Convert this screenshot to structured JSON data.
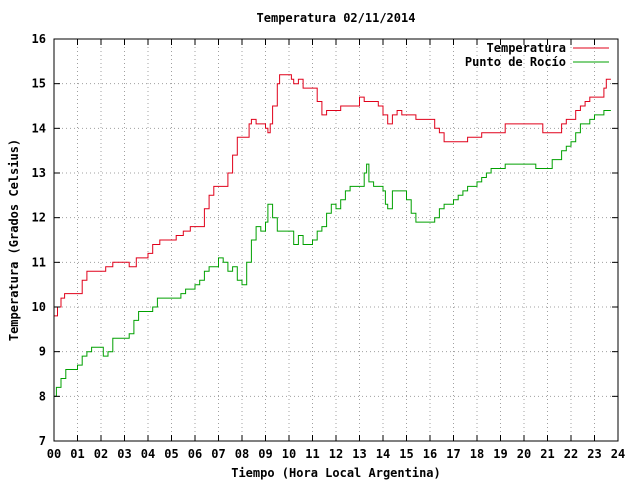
{
  "chart_data": {
    "type": "line",
    "title": "Temperatura 02/11/2014",
    "xlabel": "Tiempo (Hora Local Argentina)",
    "ylabel": "Temperatura (Grados Celsius)",
    "xlim": [
      0,
      24
    ],
    "ylim": [
      7,
      16
    ],
    "x_ticks": [
      "00",
      "01",
      "02",
      "03",
      "04",
      "05",
      "06",
      "07",
      "08",
      "09",
      "10",
      "11",
      "12",
      "13",
      "14",
      "15",
      "16",
      "17",
      "18",
      "19",
      "20",
      "21",
      "22",
      "23",
      "24"
    ],
    "y_ticks": [
      "7",
      "8",
      "9",
      "10",
      "11",
      "12",
      "13",
      "14",
      "15",
      "16"
    ],
    "grid": true,
    "legend_position": "top-right",
    "series": [
      {
        "name": "Temperatura",
        "color": "#e0001a",
        "points": [
          [
            0.0,
            9.8
          ],
          [
            0.15,
            10.0
          ],
          [
            0.3,
            10.2
          ],
          [
            0.45,
            10.3
          ],
          [
            1.0,
            10.3
          ],
          [
            1.2,
            10.6
          ],
          [
            1.4,
            10.8
          ],
          [
            2.0,
            10.8
          ],
          [
            2.2,
            10.9
          ],
          [
            2.5,
            11.0
          ],
          [
            3.0,
            11.0
          ],
          [
            3.2,
            10.9
          ],
          [
            3.5,
            11.1
          ],
          [
            4.0,
            11.2
          ],
          [
            4.2,
            11.4
          ],
          [
            4.5,
            11.5
          ],
          [
            5.0,
            11.5
          ],
          [
            5.2,
            11.6
          ],
          [
            5.5,
            11.7
          ],
          [
            5.8,
            11.8
          ],
          [
            6.2,
            11.8
          ],
          [
            6.4,
            12.2
          ],
          [
            6.6,
            12.5
          ],
          [
            6.8,
            12.7
          ],
          [
            7.2,
            12.7
          ],
          [
            7.4,
            13.0
          ],
          [
            7.6,
            13.4
          ],
          [
            7.8,
            13.8
          ],
          [
            8.1,
            13.8
          ],
          [
            8.3,
            14.1
          ],
          [
            8.4,
            14.2
          ],
          [
            8.6,
            14.1
          ],
          [
            9.0,
            14.0
          ],
          [
            9.1,
            13.9
          ],
          [
            9.2,
            14.1
          ],
          [
            9.3,
            14.5
          ],
          [
            9.5,
            15.0
          ],
          [
            9.6,
            15.2
          ],
          [
            10.0,
            15.2
          ],
          [
            10.1,
            15.1
          ],
          [
            10.2,
            15.0
          ],
          [
            10.4,
            15.1
          ],
          [
            10.6,
            14.9
          ],
          [
            11.0,
            14.9
          ],
          [
            11.2,
            14.6
          ],
          [
            11.4,
            14.3
          ],
          [
            11.6,
            14.4
          ],
          [
            12.0,
            14.4
          ],
          [
            12.2,
            14.5
          ],
          [
            12.8,
            14.5
          ],
          [
            13.0,
            14.7
          ],
          [
            13.2,
            14.6
          ],
          [
            13.8,
            14.5
          ],
          [
            14.0,
            14.3
          ],
          [
            14.2,
            14.1
          ],
          [
            14.4,
            14.3
          ],
          [
            14.6,
            14.4
          ],
          [
            14.8,
            14.3
          ],
          [
            15.2,
            14.3
          ],
          [
            15.4,
            14.2
          ],
          [
            16.0,
            14.2
          ],
          [
            16.2,
            14.0
          ],
          [
            16.4,
            13.9
          ],
          [
            16.6,
            13.7
          ],
          [
            17.0,
            13.7
          ],
          [
            17.4,
            13.7
          ],
          [
            17.6,
            13.8
          ],
          [
            18.0,
            13.8
          ],
          [
            18.2,
            13.9
          ],
          [
            19.0,
            13.9
          ],
          [
            19.2,
            14.1
          ],
          [
            20.0,
            14.1
          ],
          [
            20.6,
            14.1
          ],
          [
            20.8,
            13.9
          ],
          [
            21.4,
            13.9
          ],
          [
            21.6,
            14.1
          ],
          [
            21.8,
            14.2
          ],
          [
            22.2,
            14.4
          ],
          [
            22.4,
            14.5
          ],
          [
            22.6,
            14.6
          ],
          [
            22.8,
            14.7
          ],
          [
            23.2,
            14.7
          ],
          [
            23.4,
            14.9
          ],
          [
            23.5,
            15.1
          ],
          [
            23.7,
            15.1
          ]
        ]
      },
      {
        "name": "Punto de Rocío",
        "color": "#00a000",
        "points": [
          [
            0.0,
            8.0
          ],
          [
            0.1,
            8.2
          ],
          [
            0.3,
            8.4
          ],
          [
            0.5,
            8.6
          ],
          [
            0.8,
            8.6
          ],
          [
            1.0,
            8.7
          ],
          [
            1.2,
            8.9
          ],
          [
            1.4,
            9.0
          ],
          [
            1.6,
            9.1
          ],
          [
            2.0,
            9.1
          ],
          [
            2.1,
            8.9
          ],
          [
            2.3,
            9.0
          ],
          [
            2.5,
            9.3
          ],
          [
            3.0,
            9.3
          ],
          [
            3.2,
            9.4
          ],
          [
            3.4,
            9.7
          ],
          [
            3.6,
            9.9
          ],
          [
            4.0,
            9.9
          ],
          [
            4.2,
            10.0
          ],
          [
            4.4,
            10.2
          ],
          [
            5.0,
            10.2
          ],
          [
            5.4,
            10.3
          ],
          [
            5.6,
            10.4
          ],
          [
            6.0,
            10.5
          ],
          [
            6.2,
            10.6
          ],
          [
            6.4,
            10.8
          ],
          [
            6.6,
            10.9
          ],
          [
            7.0,
            11.1
          ],
          [
            7.2,
            11.0
          ],
          [
            7.4,
            10.8
          ],
          [
            7.6,
            10.9
          ],
          [
            7.8,
            10.6
          ],
          [
            8.0,
            10.5
          ],
          [
            8.2,
            11.0
          ],
          [
            8.4,
            11.5
          ],
          [
            8.6,
            11.8
          ],
          [
            8.8,
            11.7
          ],
          [
            9.0,
            11.9
          ],
          [
            9.1,
            12.3
          ],
          [
            9.3,
            12.0
          ],
          [
            9.5,
            11.7
          ],
          [
            10.0,
            11.7
          ],
          [
            10.2,
            11.4
          ],
          [
            10.4,
            11.6
          ],
          [
            10.6,
            11.4
          ],
          [
            11.0,
            11.5
          ],
          [
            11.2,
            11.7
          ],
          [
            11.4,
            11.8
          ],
          [
            11.6,
            12.1
          ],
          [
            11.8,
            12.3
          ],
          [
            12.0,
            12.2
          ],
          [
            12.2,
            12.4
          ],
          [
            12.4,
            12.6
          ],
          [
            12.6,
            12.7
          ],
          [
            13.0,
            12.7
          ],
          [
            13.2,
            13.0
          ],
          [
            13.3,
            13.2
          ],
          [
            13.4,
            12.8
          ],
          [
            13.6,
            12.7
          ],
          [
            14.0,
            12.6
          ],
          [
            14.1,
            12.3
          ],
          [
            14.2,
            12.2
          ],
          [
            14.4,
            12.6
          ],
          [
            14.6,
            12.6
          ],
          [
            15.0,
            12.4
          ],
          [
            15.2,
            12.1
          ],
          [
            15.4,
            11.9
          ],
          [
            16.0,
            11.9
          ],
          [
            16.2,
            12.0
          ],
          [
            16.4,
            12.2
          ],
          [
            16.6,
            12.3
          ],
          [
            17.0,
            12.4
          ],
          [
            17.2,
            12.5
          ],
          [
            17.4,
            12.6
          ],
          [
            17.6,
            12.7
          ],
          [
            18.0,
            12.8
          ],
          [
            18.2,
            12.9
          ],
          [
            18.4,
            13.0
          ],
          [
            18.6,
            13.1
          ],
          [
            19.0,
            13.1
          ],
          [
            19.2,
            13.2
          ],
          [
            19.6,
            13.2
          ],
          [
            20.0,
            13.2
          ],
          [
            20.3,
            13.2
          ],
          [
            20.5,
            13.1
          ],
          [
            21.0,
            13.1
          ],
          [
            21.2,
            13.3
          ],
          [
            21.4,
            13.3
          ],
          [
            21.6,
            13.5
          ],
          [
            21.8,
            13.6
          ],
          [
            22.0,
            13.7
          ],
          [
            22.2,
            13.9
          ],
          [
            22.4,
            14.1
          ],
          [
            22.6,
            14.1
          ],
          [
            22.8,
            14.2
          ],
          [
            23.0,
            14.3
          ],
          [
            23.2,
            14.3
          ],
          [
            23.4,
            14.4
          ],
          [
            23.7,
            14.4
          ]
        ]
      }
    ]
  }
}
